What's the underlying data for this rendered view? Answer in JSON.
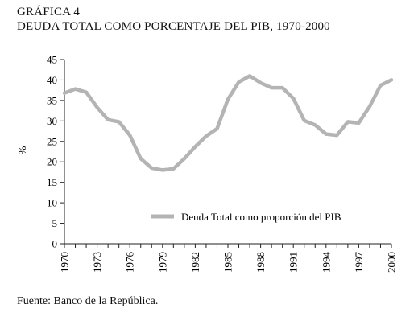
{
  "figure": {
    "label": "GRÁFICA 4",
    "title": "DEUDA TOTAL COMO PORCENTAJE DEL PIB, 1970-2000",
    "source": "Fuente: Banco de la República."
  },
  "chart_data": {
    "type": "line",
    "title": "DEUDA TOTAL COMO PORCENTAJE DEL PIB, 1970-2000",
    "xlabel": "",
    "ylabel": "%",
    "xlim": [
      1970,
      2000
    ],
    "ylim": [
      0,
      45
    ],
    "yticks": [
      0,
      5,
      10,
      15,
      20,
      25,
      30,
      35,
      40,
      45
    ],
    "xticks": [
      "1970",
      "1973",
      "1976",
      "1979",
      "1982",
      "1985",
      "1988",
      "1991",
      "1994",
      "1997",
      "2000"
    ],
    "grid": false,
    "legend": "center-right",
    "color": "#b4b4b4",
    "series": [
      {
        "name": "Deuda Total como proporción del PIB",
        "x": [
          1970,
          1971,
          1972,
          1973,
          1974,
          1975,
          1976,
          1977,
          1978,
          1979,
          1980,
          1981,
          1982,
          1983,
          1984,
          1985,
          1986,
          1987,
          1988,
          1989,
          1990,
          1991,
          1992,
          1993,
          1994,
          1995,
          1996,
          1997,
          1998,
          1999,
          2000
        ],
        "values": [
          36.8,
          37.8,
          37.0,
          33.3,
          30.3,
          29.8,
          26.5,
          20.8,
          18.5,
          18.0,
          18.3,
          20.8,
          23.7,
          26.3,
          28.1,
          35.3,
          39.5,
          41.0,
          39.3,
          38.1,
          38.1,
          35.5,
          30.1,
          29.0,
          26.8,
          26.5,
          29.8,
          29.5,
          33.5,
          38.7,
          40.0
        ]
      }
    ]
  }
}
